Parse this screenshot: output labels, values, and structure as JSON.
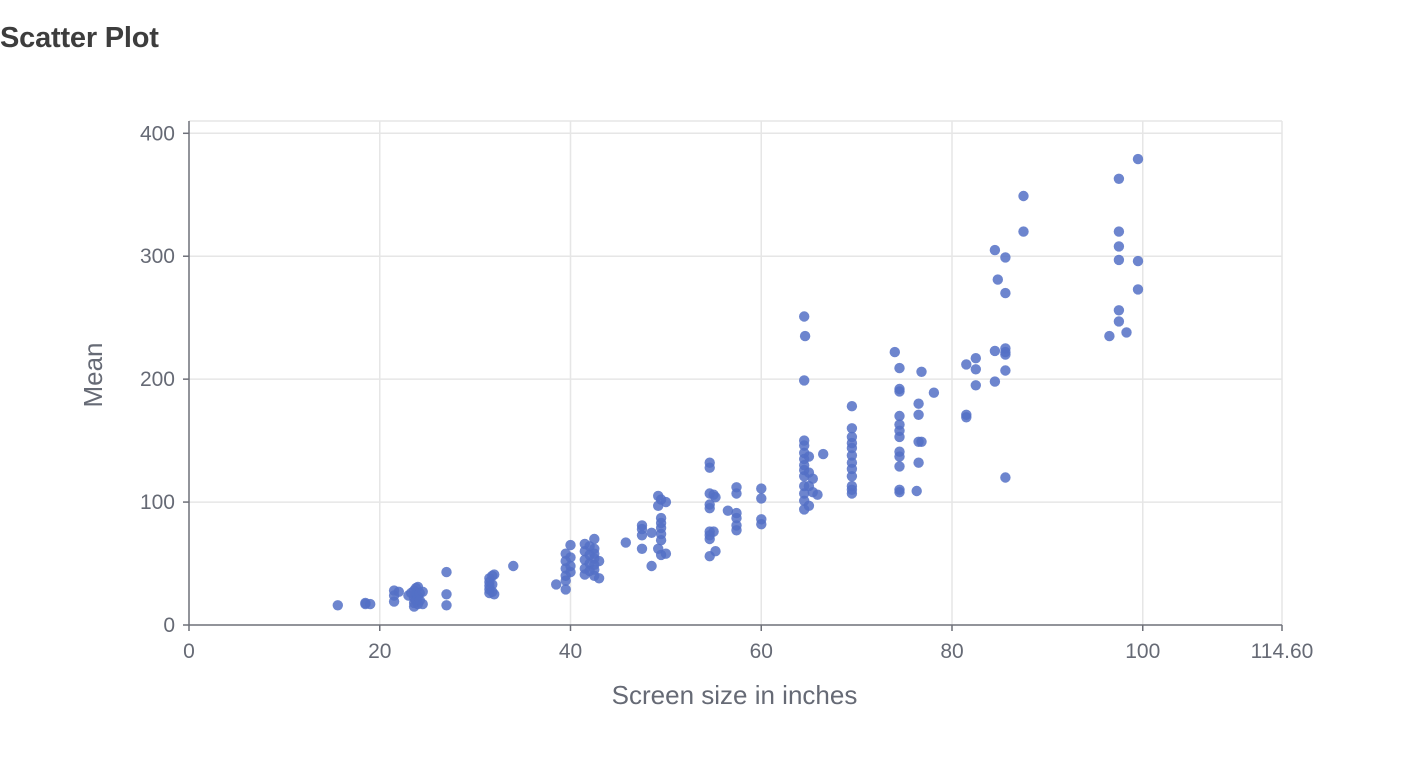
{
  "page": {
    "title": "Scatter Plot"
  },
  "chart_data": {
    "type": "scatter",
    "title": "Scatter Plot",
    "xlabel": "Screen size in inches",
    "ylabel": "Mean",
    "xlim": [
      0,
      114.6
    ],
    "ylim": [
      0,
      410
    ],
    "x_ticks": [
      0,
      20,
      40,
      60,
      80,
      100,
      114.6
    ],
    "x_tick_labels": [
      "0",
      "20",
      "40",
      "60",
      "80",
      "100",
      "114.60"
    ],
    "y_ticks": [
      0,
      100,
      200,
      300,
      400
    ],
    "y_tick_labels": [
      "0",
      "100",
      "200",
      "300",
      "400"
    ],
    "grid": true,
    "point_color": "#5470c6",
    "points": [
      [
        15.6,
        16
      ],
      [
        18.5,
        18
      ],
      [
        18.5,
        17
      ],
      [
        19.0,
        17
      ],
      [
        21.5,
        28
      ],
      [
        21.5,
        24
      ],
      [
        21.5,
        19
      ],
      [
        22.0,
        27
      ],
      [
        23.0,
        24
      ],
      [
        23.3,
        26
      ],
      [
        23.6,
        28
      ],
      [
        23.6,
        22
      ],
      [
        23.6,
        18
      ],
      [
        23.6,
        15
      ],
      [
        23.8,
        30
      ],
      [
        23.8,
        25
      ],
      [
        23.8,
        20
      ],
      [
        24.0,
        31
      ],
      [
        24.0,
        23
      ],
      [
        24.0,
        17
      ],
      [
        24.2,
        26
      ],
      [
        24.2,
        20
      ],
      [
        24.5,
        27
      ],
      [
        24.5,
        17
      ],
      [
        27.0,
        43
      ],
      [
        27.0,
        25
      ],
      [
        27.0,
        16
      ],
      [
        31.5,
        38
      ],
      [
        31.5,
        35
      ],
      [
        31.5,
        32
      ],
      [
        31.5,
        29
      ],
      [
        31.5,
        26
      ],
      [
        31.8,
        40
      ],
      [
        31.8,
        33
      ],
      [
        31.8,
        27
      ],
      [
        32.0,
        41
      ],
      [
        32.0,
        25
      ],
      [
        34.0,
        48
      ],
      [
        38.5,
        33
      ],
      [
        39.5,
        58
      ],
      [
        39.5,
        52
      ],
      [
        39.5,
        46
      ],
      [
        39.5,
        40
      ],
      [
        39.5,
        36
      ],
      [
        39.5,
        29
      ],
      [
        40.0,
        65
      ],
      [
        40.0,
        55
      ],
      [
        40.0,
        48
      ],
      [
        40.0,
        43
      ],
      [
        41.5,
        66
      ],
      [
        41.5,
        60
      ],
      [
        41.5,
        53
      ],
      [
        41.5,
        46
      ],
      [
        41.5,
        41
      ],
      [
        42.0,
        64
      ],
      [
        42.0,
        57
      ],
      [
        42.0,
        50
      ],
      [
        42.0,
        44
      ],
      [
        42.5,
        70
      ],
      [
        42.5,
        62
      ],
      [
        42.5,
        58
      ],
      [
        42.5,
        54
      ],
      [
        42.5,
        49
      ],
      [
        42.5,
        45
      ],
      [
        42.5,
        40
      ],
      [
        43.0,
        52
      ],
      [
        43.0,
        38
      ],
      [
        45.8,
        67
      ],
      [
        47.5,
        81
      ],
      [
        47.5,
        78
      ],
      [
        47.5,
        73
      ],
      [
        47.5,
        62
      ],
      [
        48.5,
        48
      ],
      [
        48.5,
        75
      ],
      [
        49.2,
        105
      ],
      [
        49.2,
        97
      ],
      [
        49.2,
        62
      ],
      [
        49.5,
        102
      ],
      [
        49.5,
        87
      ],
      [
        49.5,
        83
      ],
      [
        49.5,
        79
      ],
      [
        49.5,
        74
      ],
      [
        49.5,
        69
      ],
      [
        49.5,
        57
      ],
      [
        50.0,
        100
      ],
      [
        50.0,
        58
      ],
      [
        54.6,
        132
      ],
      [
        54.6,
        128
      ],
      [
        54.6,
        107
      ],
      [
        54.6,
        98
      ],
      [
        54.6,
        95
      ],
      [
        54.6,
        76
      ],
      [
        54.6,
        73
      ],
      [
        54.6,
        70
      ],
      [
        54.6,
        56
      ],
      [
        55.0,
        106
      ],
      [
        55.0,
        76
      ],
      [
        55.2,
        104
      ],
      [
        55.2,
        60
      ],
      [
        56.5,
        93
      ],
      [
        57.4,
        112
      ],
      [
        57.4,
        107
      ],
      [
        57.4,
        91
      ],
      [
        57.4,
        87
      ],
      [
        57.4,
        81
      ],
      [
        57.4,
        77
      ],
      [
        60.0,
        111
      ],
      [
        60.0,
        103
      ],
      [
        60.0,
        86
      ],
      [
        60.0,
        82
      ],
      [
        64.5,
        251
      ],
      [
        64.5,
        199
      ],
      [
        64.5,
        150
      ],
      [
        64.5,
        146
      ],
      [
        64.5,
        140
      ],
      [
        64.5,
        135
      ],
      [
        64.5,
        130
      ],
      [
        64.5,
        126
      ],
      [
        64.5,
        121
      ],
      [
        64.5,
        113
      ],
      [
        64.5,
        107
      ],
      [
        64.5,
        101
      ],
      [
        64.5,
        94
      ],
      [
        64.6,
        235
      ],
      [
        65.0,
        137
      ],
      [
        65.0,
        124
      ],
      [
        65.0,
        113
      ],
      [
        65.0,
        97
      ],
      [
        65.4,
        119
      ],
      [
        65.4,
        108
      ],
      [
        65.9,
        106
      ],
      [
        66.5,
        139
      ],
      [
        69.5,
        178
      ],
      [
        69.5,
        160
      ],
      [
        69.5,
        153
      ],
      [
        69.5,
        148
      ],
      [
        69.5,
        144
      ],
      [
        69.5,
        138
      ],
      [
        69.5,
        132
      ],
      [
        69.5,
        127
      ],
      [
        69.5,
        121
      ],
      [
        69.5,
        113
      ],
      [
        69.5,
        110
      ],
      [
        69.5,
        107
      ],
      [
        74.0,
        222
      ],
      [
        74.5,
        209
      ],
      [
        74.5,
        192
      ],
      [
        74.5,
        190
      ],
      [
        74.5,
        170
      ],
      [
        74.5,
        163
      ],
      [
        74.5,
        158
      ],
      [
        74.5,
        153
      ],
      [
        74.5,
        141
      ],
      [
        74.5,
        137
      ],
      [
        74.5,
        129
      ],
      [
        74.5,
        110
      ],
      [
        74.5,
        108
      ],
      [
        76.3,
        109
      ],
      [
        76.5,
        180
      ],
      [
        76.5,
        171
      ],
      [
        76.5,
        149
      ],
      [
        76.5,
        132
      ],
      [
        76.8,
        206
      ],
      [
        76.8,
        149
      ],
      [
        78.1,
        189
      ],
      [
        81.5,
        212
      ],
      [
        81.5,
        171
      ],
      [
        81.5,
        169
      ],
      [
        82.5,
        217
      ],
      [
        82.5,
        208
      ],
      [
        82.5,
        195
      ],
      [
        84.5,
        305
      ],
      [
        84.5,
        223
      ],
      [
        84.5,
        198
      ],
      [
        84.8,
        281
      ],
      [
        85.6,
        299
      ],
      [
        85.6,
        270
      ],
      [
        85.6,
        225
      ],
      [
        85.6,
        222
      ],
      [
        85.6,
        220
      ],
      [
        85.6,
        207
      ],
      [
        85.6,
        120
      ],
      [
        87.5,
        349
      ],
      [
        87.5,
        320
      ],
      [
        96.5,
        235
      ],
      [
        97.5,
        363
      ],
      [
        97.5,
        320
      ],
      [
        97.5,
        308
      ],
      [
        97.5,
        297
      ],
      [
        97.5,
        256
      ],
      [
        97.5,
        247
      ],
      [
        98.3,
        238
      ],
      [
        99.5,
        379
      ],
      [
        99.5,
        296
      ],
      [
        99.5,
        273
      ]
    ]
  }
}
